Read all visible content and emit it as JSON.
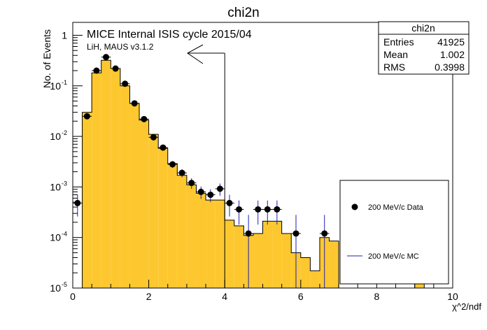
{
  "chart_data": {
    "type": "bar",
    "title": "chi2n",
    "xlabel": "χ^2/ndf",
    "ylabel": "No. of Events",
    "xlim": [
      0,
      10
    ],
    "ylim": [
      1e-05,
      1.8
    ],
    "yscale": "log",
    "x_ticks": [
      0,
      2,
      4,
      6,
      8,
      10
    ],
    "x_tick_labels": [
      "0",
      "2",
      "4",
      "6",
      "8",
      "10"
    ],
    "y_tick_values": [
      1e-05,
      0.0001,
      0.001,
      0.01,
      0.1,
      1
    ],
    "y_tick_labels": [
      "10^{-5}",
      "10^{-4}",
      "10^{-3}",
      "10^{-2}",
      "10^{-1}",
      "1"
    ],
    "bin_width": 0.25,
    "series": [
      {
        "name": "200 MeV/c MC",
        "kind": "filled-histogram",
        "color": "#fdc82f",
        "edges": [
          0,
          0.25,
          0.5,
          0.75,
          1.0,
          1.25,
          1.5,
          1.75,
          2.0,
          2.25,
          2.5,
          2.75,
          3.0,
          3.25,
          3.5,
          3.75,
          4.0,
          4.25,
          4.5,
          4.75,
          5.0,
          5.25,
          5.5,
          5.75,
          6.0,
          6.25,
          6.5,
          6.75,
          7.0,
          9.0,
          9.25
        ],
        "values": [
          1e-05,
          0.03,
          0.18,
          0.32,
          0.22,
          0.1,
          0.045,
          0.021,
          0.011,
          0.0058,
          0.0029,
          0.0017,
          0.0011,
          0.00075,
          0.00055,
          0.00055,
          0.00022,
          0.00017,
          0.00011,
          0.00012,
          0.00021,
          0.00021,
          0.00012,
          5e-05,
          4e-05,
          2.2e-05,
          0.0001,
          8.5e-05,
          1e-05,
          1.4e-05
        ]
      },
      {
        "name": "200 MeV/c Data",
        "kind": "points-with-errors",
        "x": [
          0.125,
          0.375,
          0.625,
          0.875,
          1.125,
          1.375,
          1.625,
          1.875,
          2.125,
          2.375,
          2.625,
          2.875,
          3.125,
          3.375,
          3.625,
          3.875,
          4.125,
          4.375,
          4.625,
          4.875,
          5.125,
          5.375,
          5.875,
          6.625
        ],
        "y": [
          0.00048,
          0.025,
          0.2,
          0.37,
          0.22,
          0.11,
          0.045,
          0.022,
          0.0096,
          0.006,
          0.0028,
          0.0019,
          0.0012,
          0.0008,
          0.0007,
          0.00092,
          0.00048,
          0.00036,
          0.00012,
          0.00036,
          0.00036,
          0.00036,
          0.00012,
          0.00012
        ],
        "yerr_up": [
          0.00022,
          0.0015,
          0.005,
          0.008,
          0.005,
          0.003,
          0.002,
          0.0012,
          0.0008,
          0.0006,
          0.0004,
          0.00035,
          0.00028,
          0.00022,
          0.0002,
          0.00025,
          0.00022,
          0.00018,
          0.00016,
          0.00018,
          0.00018,
          0.00018,
          0.00016,
          0.00016
        ],
        "yerr_down": [
          0.00022,
          0.0015,
          0.005,
          0.008,
          0.005,
          0.003,
          0.002,
          0.0012,
          0.0008,
          0.0006,
          0.0004,
          0.00035,
          0.00028,
          0.00022,
          0.0002,
          0.00025,
          0.00022,
          0.00018,
          0.00011,
          0.00018,
          0.00018,
          0.00018,
          0.00011,
          0.00011
        ]
      }
    ],
    "cut_line_x": 4,
    "annotations": {
      "main": "MICE Internal ISIS cycle 2015/04",
      "sub": "LiH, MAUS v3.1.2"
    },
    "legend": {
      "placement": "bottom-right",
      "entries": [
        {
          "label": "200 MeV/c Data",
          "marker": "dot"
        },
        {
          "label": "200 MeV/c MC",
          "marker": "line",
          "color": "#1f1fb4"
        }
      ]
    },
    "stats_box": {
      "placement": "top-right",
      "title": "chi2n",
      "rows": [
        {
          "label": "Entries",
          "value": "41925"
        },
        {
          "label": "Mean",
          "value": "1.002"
        },
        {
          "label": "RMS",
          "value": "0.3998"
        }
      ]
    }
  }
}
